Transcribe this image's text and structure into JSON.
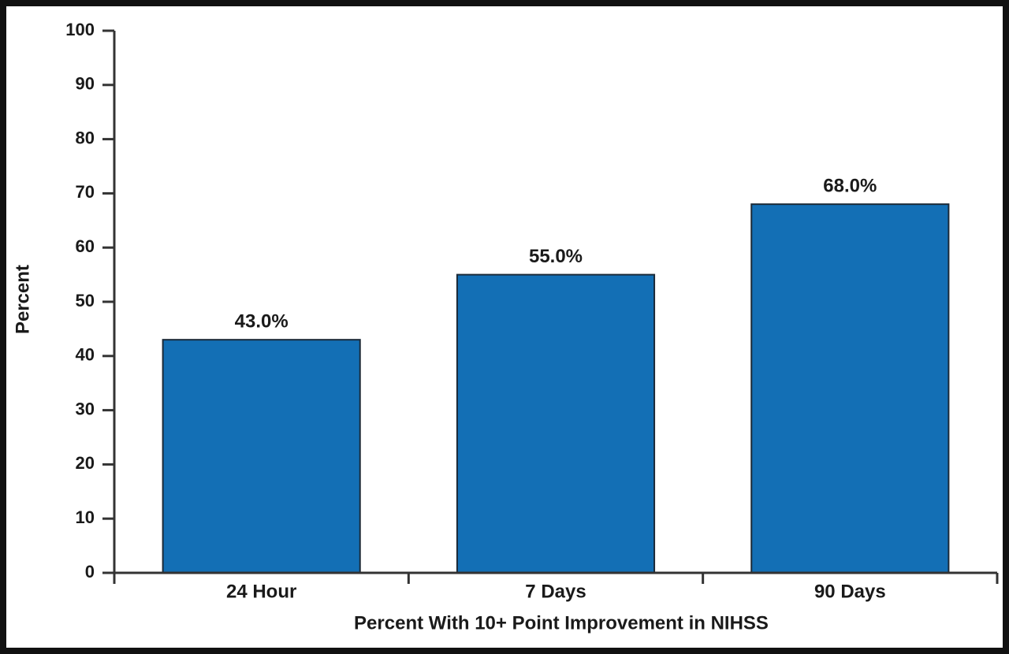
{
  "chart_data": {
    "type": "bar",
    "x_label": "Percent With 10+ Point Improvement in NIHSS",
    "y_label": "Percent",
    "categories": [
      "24 Hour",
      "7 Days",
      "90 Days"
    ],
    "values": [
      43,
      55,
      68
    ],
    "value_labels": [
      "43.0%",
      "55.0%",
      "68.0%"
    ],
    "color": "#136fb5",
    "ylim": [
      0,
      100
    ],
    "yticks": [
      0,
      10,
      20,
      30,
      40,
      50,
      60,
      70,
      80,
      90,
      100
    ]
  }
}
